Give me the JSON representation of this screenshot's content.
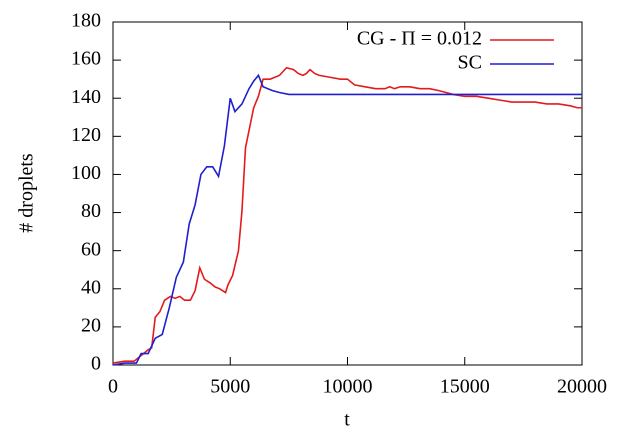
{
  "chart_data": {
    "type": "line",
    "xlabel": "t",
    "ylabel": "# droplets",
    "xlim": [
      0,
      20000
    ],
    "ylim": [
      0,
      180
    ],
    "xticks": [
      0,
      5000,
      10000,
      15000,
      20000
    ],
    "yticks": [
      0,
      20,
      40,
      60,
      80,
      100,
      120,
      140,
      160,
      180
    ],
    "legend": "top right",
    "series": [
      {
        "name": "CG - Π = 0.012",
        "color": "#e41a1c",
        "x": [
          0,
          500,
          900,
          1300,
          1500,
          1650,
          1800,
          2000,
          2200,
          2450,
          2650,
          2850,
          3050,
          3300,
          3500,
          3700,
          3900,
          4150,
          4350,
          4550,
          4800,
          4900,
          5100,
          5350,
          5500,
          5650,
          5850,
          6000,
          6200,
          6400,
          6700,
          6900,
          7100,
          7400,
          7700,
          7900,
          8100,
          8250,
          8400,
          8600,
          8800,
          9250,
          9700,
          10000,
          10300,
          10750,
          11200,
          11600,
          11800,
          12000,
          12250,
          12650,
          13100,
          13500,
          13900,
          14200,
          14500,
          15000,
          15500,
          16000,
          16500,
          17000,
          17500,
          18000,
          18500,
          19000,
          19500,
          19800,
          20000
        ],
        "values": [
          1,
          2,
          2,
          6,
          8,
          9,
          25,
          28,
          34,
          36,
          35,
          36,
          34,
          34,
          39,
          51,
          45,
          43,
          41,
          40,
          38,
          42,
          47,
          60,
          81,
          114,
          126,
          135,
          141,
          150,
          150,
          151,
          152,
          156,
          155,
          153,
          152,
          153,
          155,
          153,
          152,
          151,
          150,
          150,
          147,
          146,
          145,
          145,
          146,
          145,
          146,
          146,
          145,
          145,
          144,
          143,
          142,
          141,
          141,
          140,
          139,
          138,
          138,
          138,
          137,
          137,
          136,
          135,
          135
        ]
      },
      {
        "name": "SC",
        "color": "#1f1fd0",
        "x": [
          0,
          500,
          1000,
          1200,
          1500,
          1800,
          2100,
          2400,
          2700,
          3000,
          3250,
          3500,
          3750,
          4000,
          4250,
          4500,
          4750,
          5000,
          5200,
          5500,
          5800,
          6000,
          6200,
          6400,
          6800,
          7100,
          7500,
          20000
        ],
        "values": [
          0,
          1,
          1,
          6,
          6,
          14,
          16,
          30,
          46,
          54,
          74,
          84,
          100,
          104,
          104,
          99,
          115,
          140,
          133,
          137,
          145,
          149,
          152,
          146,
          144,
          143,
          142,
          142
        ]
      }
    ]
  }
}
